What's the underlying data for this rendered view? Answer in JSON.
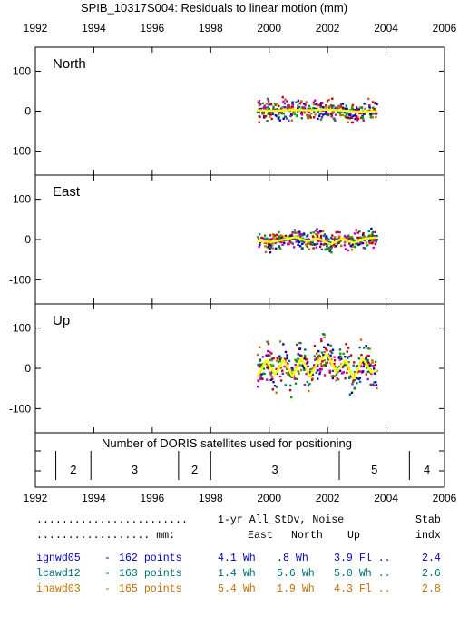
{
  "chart_data": {
    "type": "scatter",
    "title": "SPIB_10317S004: Residuals to linear motion (mm)",
    "x_ticks": [
      "1992",
      "1994",
      "1996",
      "1998",
      "2000",
      "2002",
      "2004",
      "2006"
    ],
    "xlim": [
      1992,
      2006
    ],
    "panels": [
      {
        "name": "North",
        "ylim": [
          -160,
          160
        ],
        "y_ticks": [
          "100",
          "0",
          "-100"
        ],
        "data_span": [
          1999.6,
          2003.7
        ],
        "scatter_amplitude": 20,
        "fit_curve": [
          [
            1999.6,
            2
          ],
          [
            2000.2,
            1
          ],
          [
            2000.8,
            3
          ],
          [
            2001.4,
            2
          ],
          [
            2002.0,
            4
          ],
          [
            2002.6,
            1
          ],
          [
            2003.2,
            -2
          ],
          [
            2003.7,
            0
          ]
        ]
      },
      {
        "name": "East",
        "ylim": [
          -160,
          160
        ],
        "y_ticks": [
          "100",
          "0",
          "-100"
        ],
        "data_span": [
          1999.6,
          2003.7
        ],
        "scatter_amplitude": 18,
        "fit_curve": [
          [
            1999.6,
            -4
          ],
          [
            2000.1,
            -6
          ],
          [
            2000.5,
            0
          ],
          [
            2000.9,
            6
          ],
          [
            2001.3,
            -4
          ],
          [
            2001.7,
            2
          ],
          [
            2002.1,
            -12
          ],
          [
            2002.5,
            3
          ],
          [
            2002.9,
            -8
          ],
          [
            2003.3,
            3
          ],
          [
            2003.7,
            5
          ]
        ]
      },
      {
        "name": "Up",
        "ylim": [
          -160,
          160
        ],
        "y_ticks": [
          "100",
          "0",
          "-100"
        ],
        "data_span": [
          1999.6,
          2003.7
        ],
        "scatter_amplitude": 38,
        "fit_curve": [
          [
            1999.6,
            -20
          ],
          [
            1999.9,
            20
          ],
          [
            2000.2,
            -15
          ],
          [
            2000.5,
            20
          ],
          [
            2000.8,
            -20
          ],
          [
            2001.1,
            25
          ],
          [
            2001.4,
            -20
          ],
          [
            2001.7,
            20
          ],
          [
            2002.0,
            35
          ],
          [
            2002.3,
            -10
          ],
          [
            2002.6,
            20
          ],
          [
            2002.9,
            -25
          ],
          [
            2003.2,
            25
          ],
          [
            2003.5,
            -10
          ],
          [
            2003.7,
            -5
          ]
        ]
      }
    ],
    "satellites": {
      "label": "Number of DORIS satellites used for positioning",
      "segments": [
        {
          "start": 1992.7,
          "end": 1993.9,
          "count": "2"
        },
        {
          "start": 1993.9,
          "end": 1996.9,
          "count": "3"
        },
        {
          "start": 1996.9,
          "end": 1998.0,
          "count": "2"
        },
        {
          "start": 1998.0,
          "end": 2002.4,
          "count": "3"
        },
        {
          "start": 2002.4,
          "end": 2004.8,
          "count": "5"
        },
        {
          "start": 2004.8,
          "end": 2006.0,
          "count": "4"
        }
      ]
    },
    "series": [
      {
        "name": "ignwd05",
        "points": "162 points",
        "east": "4.1 Wh",
        "north": ".8 Wh",
        "up": "3.9 Fl ..",
        "stab": "2.4",
        "color": "#0000c0"
      },
      {
        "name": "lcawd12",
        "points": "163 points",
        "east": "1.4 Wh",
        "north": "5.6 Wh",
        "up": "5.0 Wh ..",
        "stab": "2.6",
        "color": "#007070"
      },
      {
        "name": "inawd03",
        "points": "165 points",
        "east": "5.4 Wh",
        "north": "1.9 Wh",
        "up": "4.3 Fl ..",
        "stab": "2.8",
        "color": "#c07000"
      }
    ],
    "fit_color": "#ffff00",
    "extra_dot_colors": [
      "#c00000",
      "#c000c0",
      "#00a000"
    ]
  },
  "table": {
    "header1": {
      "dots": "........................",
      "label": "1-yr All_StDv, Noise",
      "stab": "Stab"
    },
    "header2": {
      "dots": ".................. mm:",
      "east": "East",
      "north": "North",
      "up": "Up",
      "indx": "indx"
    },
    "dash": "-"
  }
}
